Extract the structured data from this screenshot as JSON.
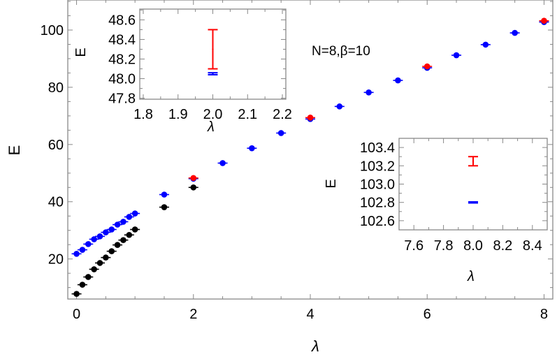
{
  "chart_data": [
    {
      "type": "scatter",
      "xlabel": "λ",
      "ylabel": "E",
      "annotation": "N=8,β=10",
      "xlim": [
        -0.15,
        8.15
      ],
      "ylim": [
        6,
        110.5
      ],
      "xticks": [
        "0",
        "2",
        "4",
        "6",
        "8"
      ],
      "xtick_values": [
        0,
        2,
        4,
        6,
        8
      ],
      "yticks": [
        "20",
        "40",
        "60",
        "80",
        "100"
      ],
      "ytick_values": [
        20,
        40,
        60,
        80,
        100
      ],
      "grid": false,
      "colors": {
        "black_series": "#000000",
        "blue_series": "#0000ff",
        "red_series": "#ff0000"
      },
      "series": [
        {
          "color": "#000000",
          "x": [
            0,
            0.1,
            0.2,
            0.3,
            0.4,
            0.5,
            0.6,
            0.7,
            0.8,
            0.9,
            1.0,
            1.5,
            2.0
          ],
          "y": [
            7.8,
            11.0,
            13.7,
            16.4,
            18.6,
            20.5,
            22.7,
            24.9,
            26.6,
            28.4,
            30.3,
            38.1,
            45.0
          ]
        },
        {
          "color": "#0000ff",
          "x": [
            0,
            0.1,
            0.2,
            0.3,
            0.4,
            0.5,
            0.6,
            0.7,
            0.8,
            0.9,
            1.0,
            1.5,
            2.0,
            2.5,
            3.0,
            3.5,
            4.0,
            4.5,
            5.0,
            5.5,
            6.0,
            6.5,
            7.0,
            7.5,
            8.0
          ],
          "y": [
            21.8,
            23.2,
            25.2,
            26.9,
            27.9,
            29.3,
            30.3,
            32.0,
            33.0,
            34.7,
            35.9,
            42.5,
            48.05,
            53.5,
            58.7,
            64.0,
            68.9,
            73.3,
            78.2,
            82.4,
            86.8,
            91.2,
            94.9,
            99.0,
            102.8
          ]
        },
        {
          "color": "#ff0000",
          "x": [
            2,
            4,
            6,
            8
          ],
          "y": [
            48.3,
            69.4,
            87.3,
            103.25
          ]
        }
      ]
    },
    {
      "type": "scatter",
      "xlabel": "λ",
      "ylabel": "E",
      "xlim": [
        1.79,
        2.21
      ],
      "ylim": [
        47.79,
        48.71
      ],
      "xticks": [
        "1.8",
        "1.9",
        "2.0",
        "2.1",
        "2.2"
      ],
      "xtick_values": [
        1.8,
        1.9,
        2.0,
        2.1,
        2.2
      ],
      "yticks": [
        "47.8",
        "48.0",
        "48.2",
        "48.4",
        "48.6"
      ],
      "ytick_values": [
        47.8,
        48.0,
        48.2,
        48.4,
        48.6
      ],
      "series": [
        {
          "color": "#ff0000",
          "x": [
            2.0
          ],
          "y": [
            48.3
          ],
          "error": [
            0.2
          ]
        },
        {
          "color": "#0000ff",
          "x": [
            2.0
          ],
          "y": [
            48.05
          ],
          "error": [
            0.01
          ]
        }
      ]
    },
    {
      "type": "scatter",
      "xlabel": "λ",
      "ylabel": "E",
      "xlim": [
        7.5,
        8.5
      ],
      "ylim": [
        102.5,
        103.5
      ],
      "xticks": [
        "7.6",
        "7.8",
        "8.0",
        "8.2",
        "8.4"
      ],
      "xtick_values": [
        7.6,
        7.8,
        8.0,
        8.2,
        8.4
      ],
      "yticks": [
        "102.6",
        "102.8",
        "103.0",
        "103.2",
        "103.4"
      ],
      "ytick_values": [
        102.6,
        102.8,
        103.0,
        103.2,
        103.4
      ],
      "series": [
        {
          "color": "#ff0000",
          "x": [
            8.0
          ],
          "y": [
            103.25
          ],
          "error": [
            0.05
          ]
        },
        {
          "color": "#0000ff",
          "x": [
            8.0
          ],
          "y": [
            102.8
          ],
          "error": [
            0.006
          ]
        }
      ]
    }
  ]
}
